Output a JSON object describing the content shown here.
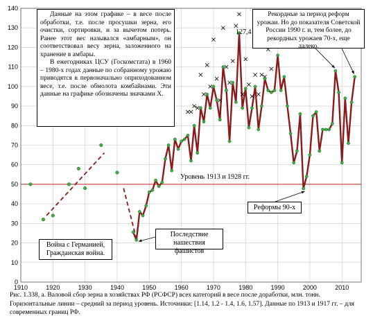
{
  "chart_data": {
    "type": "line",
    "title": "",
    "xlabel": "",
    "ylabel": "",
    "xlim": [
      1910,
      2016
    ],
    "ylim": [
      0,
      140
    ],
    "x_ticks": [
      "1910",
      "1920",
      "1930",
      "1940",
      "1950",
      "1960",
      "1970",
      "1980",
      "1990",
      "2000",
      "2010"
    ],
    "y_ticks": [
      "0",
      "10",
      "20",
      "30",
      "40",
      "50",
      "60",
      "70",
      "80",
      "90",
      "100",
      "110",
      "120",
      "130",
      "140"
    ],
    "grid": true,
    "reference_line": {
      "value": 50,
      "label": "Уровень 1913 и 1928 гг."
    },
    "peak_annotation": {
      "x": 1978,
      "y": 127.4,
      "label": "127,4"
    },
    "series": [
      {
        "name": "",
        "style": "line-with-points",
        "x": [
          1945,
          1946,
          1947,
          1948,
          1949,
          1950,
          1951,
          1952,
          1953,
          1954,
          1955,
          1956,
          1957,
          1958,
          1959,
          1960,
          1961,
          1962,
          1963,
          1964,
          1965,
          1966,
          1967,
          1968,
          1969,
          1970,
          1971,
          1972,
          1973,
          1974,
          1975,
          1976,
          1977,
          1978,
          1979,
          1980,
          1981,
          1982,
          1983,
          1984,
          1985,
          1986,
          1987,
          1988,
          1989,
          1990,
          1991,
          1992,
          1993,
          1994,
          1995,
          1996,
          1997,
          1998,
          1999,
          2000,
          2001,
          2002,
          2003,
          2004,
          2005,
          2006,
          2007,
          2008,
          2009,
          2010,
          2011,
          2012,
          2013,
          2014
        ],
        "values": [
          25.5,
          21.5,
          36,
          34,
          39,
          46,
          47,
          52,
          49,
          51,
          63,
          70,
          57,
          73,
          68,
          72,
          73,
          75,
          62,
          80,
          66,
          89,
          82,
          96,
          89,
          100,
          93,
          83,
          110,
          98,
          72,
          102,
          92,
          127.4,
          89,
          99,
          79,
          89,
          100,
          78,
          90,
          104,
          98,
          97,
          98,
          116,
          98,
          105,
          90,
          76,
          61,
          67,
          86,
          47.8,
          54,
          65,
          85,
          87,
          67,
          78,
          78,
          78,
          81,
          108,
          97,
          61,
          94,
          71,
          92,
          105
        ]
      },
      {
        "name": "",
        "style": "points",
        "x": [
          1913,
          1917,
          1920,
          1925,
          1928,
          1930,
          1935,
          1940
        ],
        "values": [
          50,
          32,
          34,
          50,
          58,
          48,
          70,
          56
        ]
      },
      {
        "name": "",
        "style": "x-markers",
        "x": [
          1962,
          1963,
          1964,
          1965,
          1966,
          1967,
          1968,
          1969,
          1970,
          1971,
          1972,
          1973,
          1974,
          1975,
          1976,
          1977,
          1978,
          1979,
          1980,
          1981,
          1982,
          1983,
          1984,
          1985,
          1986,
          1987,
          1988,
          1989
        ],
        "values": [
          87,
          87,
          90,
          89,
          106,
          96,
          111,
          100,
          124,
          104,
          93,
          130,
          110,
          102,
          113,
          131,
          137,
          96,
          114,
          101,
          95,
          106,
          96,
          106,
          105,
          119,
          109,
          124
        ]
      }
    ],
    "trend_segments": [
      {
        "x": [
          1918,
          1936
        ],
        "values": [
          34,
          66
        ]
      },
      {
        "x": [
          1942,
          1946
        ],
        "values": [
          48,
          22
        ]
      }
    ]
  },
  "notes": {
    "main": [
      "Данные на этом графике – в весе после обработки, т.е. после просушки зерна, его очистки, сортировки, и за вычетом потерь. Ранее этот вес назывался «амбарным», он соответствовал весу зерна, заложенного на хранение в амбары.",
      "В ежегодниках ЦСУ (Госкомстата) в 1960 – 1980-х годах данные по собранному урожаю приводятся в первоначально оприходованном весе, т.е. после обмолота комбайнами.  Эти данные на графике обозначены значками Х."
    ],
    "records": "Рекордные за период реформ урожаи. Но до показателя Советской России 1990 г. и, тем более, до рекордных урожаев 70-х, еще далеко.",
    "war": "Война с Германией, Гражданская война.",
    "fascist": "Последствие нашествия фашистов",
    "reforms": "Реформы 90-х"
  },
  "caption": "Рис. 1.338, а. Валовой сбор зерна в хозяйствах РФ (РСФСР) всех категорий в весе после доработки, млн. тонн. Горизонтальные линии – средний за период  уровень. Источники: [1.14, 1.2 - 1.4, 1.6, 1.57]. Данные по 1913 и 1917 гг. – для современных границ РФ.",
  "colors": {
    "series": "#8b1a1a",
    "points": "#3cb043",
    "reference": "#c0392b",
    "grid": "#c8c8c8"
  }
}
